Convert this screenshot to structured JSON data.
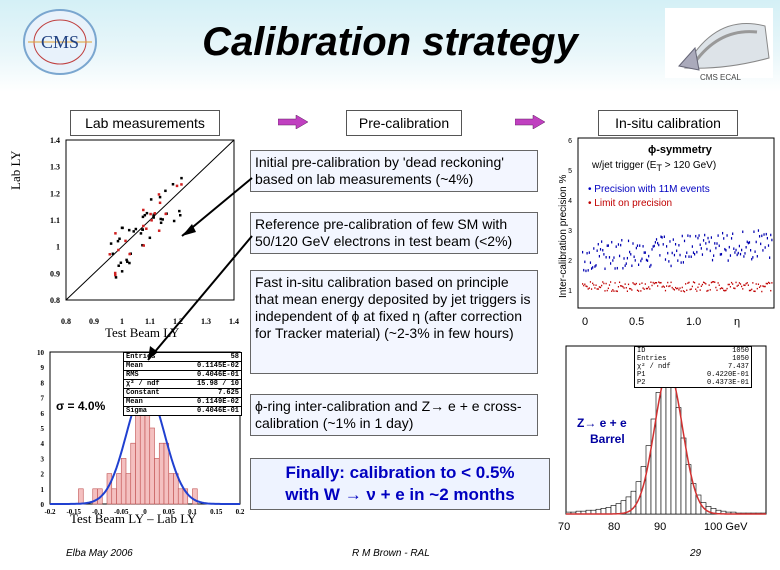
{
  "header": {
    "title": "Calibration strategy",
    "cms_logo_text": "CMS",
    "ecal_caption": "CMS ECAL"
  },
  "flow": {
    "lab_label": "Lab measurements",
    "pre_label": "Pre-calibration",
    "insitu_label": "In-situ calibration"
  },
  "text_boxes": {
    "dead_reckoning": "Initial pre-calibration by 'dead reckoning' based on lab measurements (~4%)",
    "reference": "Reference pre-calibration of few SM with 50/120 GeV electrons in test beam (<2%)",
    "fast_insitu": "Fast in-situ calibration based on principle that mean energy deposited by jet triggers is independent of ϕ at fixed η (after correction for Tracker material) (~2-3% in few hours)",
    "phi_ring": "ϕ-ring inter-calibration and Z→ e + e cross-calibration (~1% in 1 day)",
    "finally_line1": "Finally: calibration to < 0.5%",
    "finally_line2": "with W → ν + e in ~2 months"
  },
  "scatter": {
    "ylabel": "Lab LY",
    "xlabel": "Test Beam LY",
    "y_ticks": [
      "1.4",
      "1.3",
      "1.2",
      "1.1",
      "1",
      "0.9",
      "0.8"
    ],
    "x_ticks": [
      "0.8",
      "0.9",
      "1",
      "1.1",
      "1.2",
      "1.3",
      "1.4"
    ]
  },
  "histogram": {
    "xlabel": "Test Beam LY – Lab LY",
    "sigma": "σ = 4.0%",
    "y_ticks": [
      "10",
      "9",
      "8",
      "7",
      "6",
      "5",
      "4",
      "3",
      "2",
      "1",
      "0"
    ],
    "x_ticks": [
      "-0.2",
      "-0.15",
      "-0.1",
      "-0.05",
      "0",
      "0.05",
      "0.1",
      "0.15",
      "0.2"
    ],
    "stats": [
      {
        "k": "Entries",
        "v": "58"
      },
      {
        "k": "Mean",
        "v": "0.1145E-02"
      },
      {
        "k": "RMS",
        "v": "0.4046E-01"
      },
      {
        "k": "χ² / ndf",
        "v": "15.98  /  10"
      },
      {
        "k": "Constant",
        "v": "7.625"
      },
      {
        "k": "Mean",
        "v": "0.1149E-02"
      },
      {
        "k": "Sigma",
        "v": "0.4046E-01"
      }
    ]
  },
  "symmetry_plot": {
    "ylabel": "Inter-calibration precision  %",
    "title": "ϕ-symmetry",
    "subtitle": "w/jet trigger (E",
    "subtitle_sub": "T",
    "subtitle_end": " > 120 GeV)",
    "bullet1": "• Precision with 11M events",
    "bullet2": "• Limit on precision",
    "x_ticks": [
      "0",
      "0.5",
      "1.0",
      "η"
    ],
    "y_ticks": [
      "6",
      "5",
      "4",
      "3",
      "2",
      "1"
    ]
  },
  "z_plot": {
    "label1": "Z→ e + e",
    "label2": "Barrel",
    "x_ticks": [
      "70",
      "80",
      "90",
      "100  GeV"
    ],
    "stats": [
      {
        "k": "ID",
        "v": "1050"
      },
      {
        "k": "Entries",
        "v": "1050"
      },
      {
        "k": "χ² / ndf",
        "v": "7.437"
      },
      {
        "k": "P1",
        "v": "0.4220E-01"
      },
      {
        "k": "P2",
        "v": "0.4373E-01"
      }
    ]
  },
  "footer": {
    "left": "Elba May 2006",
    "center": "R M Brown - RAL",
    "page": "29"
  },
  "colors": {
    "arrow": "#c040c0",
    "histogram_fill": "#f4c0c0",
    "gauss": "#2040d0",
    "z_fit": "#d03030"
  }
}
